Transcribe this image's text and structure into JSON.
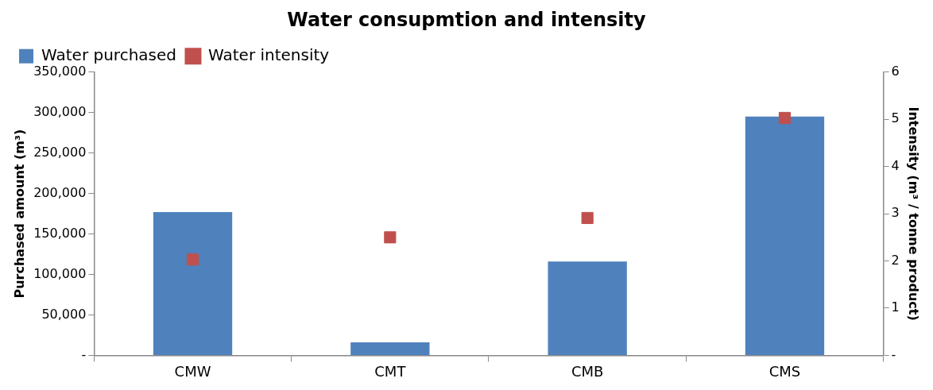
{
  "chart_data": {
    "type": "bar",
    "title": "Water consupmtion and intensity",
    "ylabel": "Purchased amount (m³)",
    "y2label": "Intensity (m³ / tonne product)",
    "categories": [
      "CMW",
      "CMT",
      "CMB",
      "CMS"
    ],
    "series": [
      {
        "name": "Water purchased",
        "color": "#4f81bd",
        "values": [
          177000,
          16000,
          116000,
          295000
        ]
      },
      {
        "name": "Water intensity",
        "type": "scatter",
        "axis": "y2",
        "marker": "square",
        "color": "#c0504d",
        "values": [
          2.03,
          2.5,
          2.91,
          5.03
        ]
      }
    ],
    "ylim": [
      0,
      350000
    ],
    "yticks": [
      {
        "value": 0,
        "label": "-"
      },
      {
        "value": 50000,
        "label": "50,000"
      },
      {
        "value": 100000,
        "label": "100,000"
      },
      {
        "value": 150000,
        "label": "150,000"
      },
      {
        "value": 200000,
        "label": "200,000"
      },
      {
        "value": 250000,
        "label": "250,000"
      },
      {
        "value": 300000,
        "label": "300,000"
      },
      {
        "value": 350000,
        "label": "350,000"
      }
    ],
    "y2lim": [
      0,
      6
    ],
    "y2ticks": [
      {
        "value": 0,
        "label": "-"
      },
      1,
      2,
      3,
      4,
      5,
      6
    ],
    "legend": "top left"
  }
}
